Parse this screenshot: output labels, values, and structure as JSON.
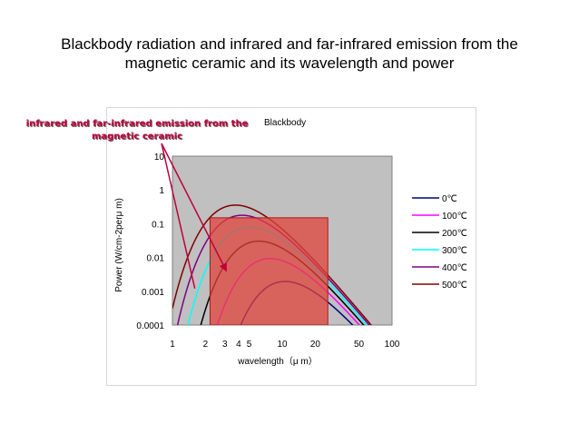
{
  "slide": {
    "title_line1": "Blackbody radiation and infrared and far-infrared emission from the",
    "title_line2": "magnetic ceramic and its wavelength and power"
  },
  "annotation": {
    "line1": "infrared and far-infrared emission from the",
    "line2": "magnetic ceramic",
    "color": "#c0003a"
  },
  "chart_data": {
    "type": "line",
    "title": "Blackbody",
    "xlabel": "wavelength（μ m）",
    "ylabel": "Power (W/cm-2perμ m)",
    "x_scale": "log",
    "y_scale": "log",
    "xlim": [
      1,
      100
    ],
    "ylim": [
      0.0001,
      10
    ],
    "x_ticks": [
      "1",
      "2",
      "3",
      "4",
      "5",
      "10",
      "20",
      "50",
      "100"
    ],
    "x_tick_values": [
      1,
      2,
      3,
      4,
      5,
      10,
      20,
      50,
      100
    ],
    "y_ticks": [
      "0.0001",
      "0.001",
      "0.01",
      "0.1",
      "1",
      "10"
    ],
    "y_tick_values": [
      0.0001,
      0.001,
      0.01,
      0.1,
      1,
      10
    ],
    "plot_background": "#c0c0c0",
    "highlight_region": {
      "x": [
        2.2,
        26
      ],
      "y": [
        0.0001,
        0.15
      ],
      "color": "#e0443c",
      "opacity": 0.75
    },
    "legend_position": "right",
    "series": [
      {
        "name": "0℃",
        "color": "#000080",
        "temperature_K": 273.15
      },
      {
        "name": "100℃",
        "color": "#ff00ff",
        "temperature_K": 373.15
      },
      {
        "name": "200℃",
        "color": "#000000",
        "temperature_K": 473.15
      },
      {
        "name": "300℃",
        "color": "#00ffff",
        "temperature_K": 573.15
      },
      {
        "name": "400℃",
        "color": "#800080",
        "temperature_K": 673.15
      },
      {
        "name": "500℃",
        "color": "#800000",
        "temperature_K": 773.15
      }
    ]
  }
}
